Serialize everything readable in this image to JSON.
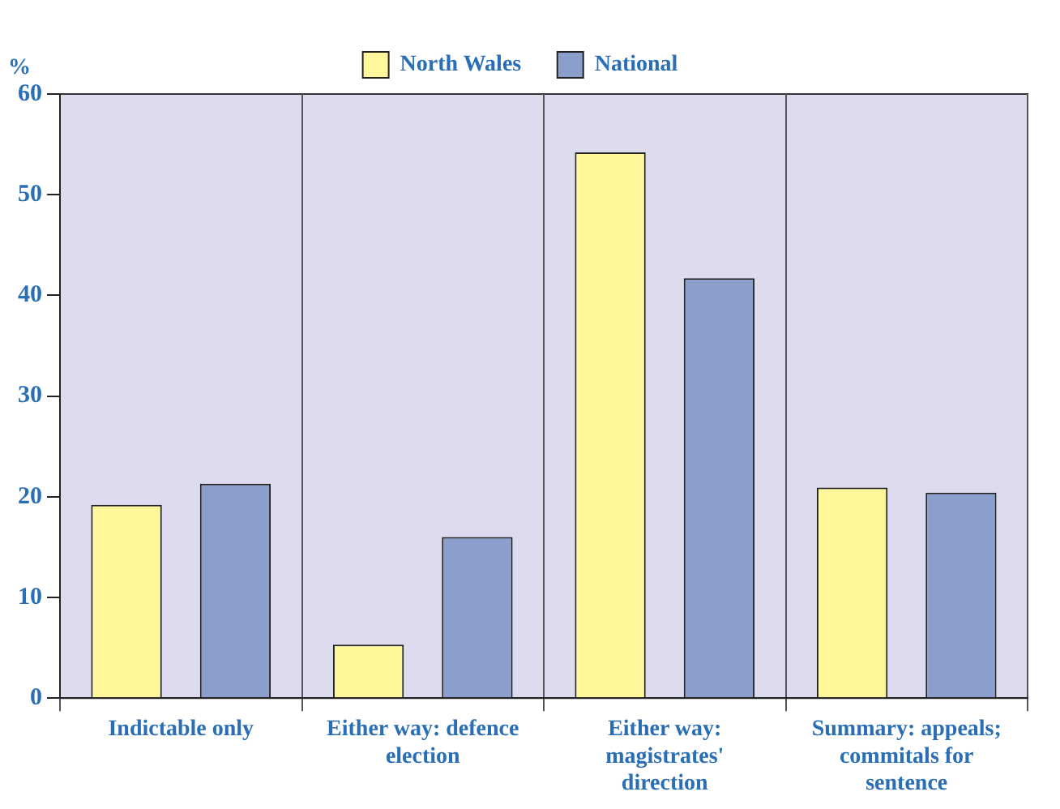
{
  "chart_data": {
    "type": "bar",
    "ylabel": "%",
    "categories": [
      "Indictable only",
      "Either way: defence election",
      "Either way: magistrates' direction",
      "Summary: appeals; commitals for sentence"
    ],
    "series": [
      {
        "name": "North Wales",
        "color": "#fff799",
        "values": [
          19.2,
          5.3,
          54.2,
          20.9
        ]
      },
      {
        "name": "National",
        "color": "#8c9fcc",
        "values": [
          21.3,
          16.0,
          41.7,
          20.4
        ]
      }
    ],
    "ylim": [
      0,
      60
    ],
    "yticks": [
      0,
      10,
      20,
      30,
      40,
      50,
      60
    ],
    "grid": "x",
    "legend": "top"
  }
}
